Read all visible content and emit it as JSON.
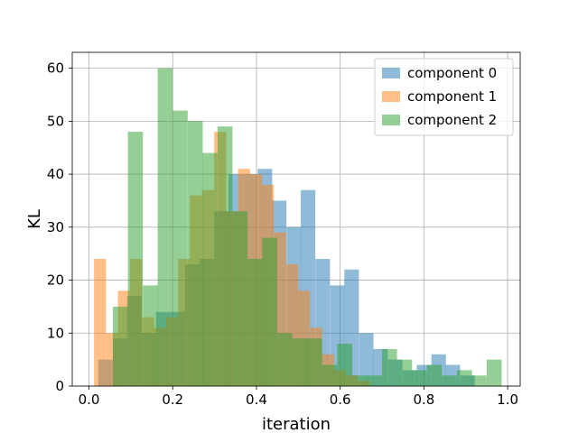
{
  "chart_data": {
    "type": "histogram",
    "title": "",
    "xlabel": "iteration",
    "ylabel": "KL",
    "xlim": [
      -0.04,
      1.03
    ],
    "ylim": [
      0,
      63
    ],
    "xticks": [
      0.0,
      0.2,
      0.4,
      0.6,
      0.8,
      1.0
    ],
    "xtick_labels": [
      "0.0",
      "0.2",
      "0.4",
      "0.6",
      "0.8",
      "1.0"
    ],
    "yticks": [
      0,
      10,
      20,
      30,
      40,
      50,
      60
    ],
    "ytick_labels": [
      "0",
      "10",
      "20",
      "30",
      "40",
      "50",
      "60"
    ],
    "grid": true,
    "legend_position": "top-right",
    "opacity": 0.5,
    "series": [
      {
        "name": "component 0",
        "color": "#1f77b4",
        "bin_width": 0.0346,
        "bins_start": [
          0.022,
          0.057,
          0.091,
          0.126,
          0.16,
          0.195,
          0.23,
          0.264,
          0.299,
          0.333,
          0.368,
          0.403,
          0.437,
          0.472,
          0.506,
          0.541,
          0.576,
          0.61,
          0.645,
          0.679,
          0.714,
          0.749,
          0.783,
          0.818,
          0.852,
          0.887
        ],
        "values": [
          5,
          9,
          17,
          10,
          14,
          14,
          23,
          24,
          33,
          40,
          40,
          41,
          35,
          30,
          37,
          24,
          19,
          22,
          10,
          7,
          5,
          3,
          4,
          6,
          4,
          2
        ]
      },
      {
        "name": "component 1",
        "color": "#ff7f0e",
        "bin_width": 0.0287,
        "bins_start": [
          0.012,
          0.041,
          0.069,
          0.098,
          0.127,
          0.155,
          0.184,
          0.213,
          0.241,
          0.27,
          0.299,
          0.327,
          0.356,
          0.385,
          0.413,
          0.442,
          0.471,
          0.499,
          0.528,
          0.557,
          0.585,
          0.614,
          0.643
        ],
        "values": [
          24,
          10,
          18,
          24,
          13,
          11,
          13,
          24,
          36,
          37,
          48,
          33,
          41,
          40,
          38,
          29,
          23,
          18,
          11,
          6,
          3,
          2,
          1
        ]
      },
      {
        "name": "component 2",
        "color": "#2ca02c",
        "bin_width": 0.0357,
        "bins_start": [
          0.057,
          0.093,
          0.129,
          0.164,
          0.2,
          0.236,
          0.271,
          0.307,
          0.343,
          0.379,
          0.414,
          0.45,
          0.486,
          0.521,
          0.557,
          0.593,
          0.629,
          0.664,
          0.7,
          0.736,
          0.771,
          0.807,
          0.843,
          0.879,
          0.914,
          0.95
        ],
        "values": [
          15,
          48,
          19,
          60,
          52,
          50,
          44,
          49,
          33,
          24,
          28,
          10,
          9,
          9,
          4,
          8,
          2,
          2,
          7,
          5,
          3,
          4,
          2,
          3,
          2,
          5
        ]
      }
    ]
  }
}
